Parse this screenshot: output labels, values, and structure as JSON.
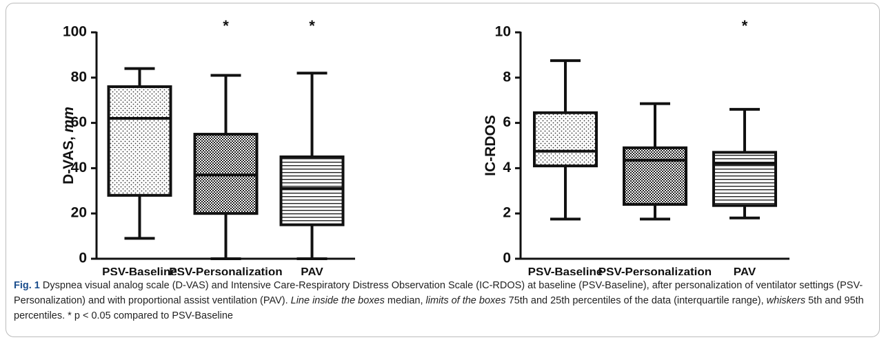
{
  "chart_data": [
    {
      "type": "box",
      "ylabel": "D-VAS,",
      "ylabel_unit": "mm",
      "categories": [
        "PSV-Baseline",
        "PSV-Personalization",
        "PAV"
      ],
      "whisker_low": [
        9,
        0,
        0
      ],
      "q1": [
        28,
        20,
        15
      ],
      "median": [
        62,
        37,
        31
      ],
      "q3": [
        76,
        55,
        45
      ],
      "whisker_high": [
        84,
        81,
        82
      ],
      "fill_patterns": [
        "dots",
        "checker",
        "hlines"
      ],
      "color": "#111111",
      "ylim": [
        0,
        100
      ],
      "yticks": [
        0,
        20,
        40,
        60,
        80,
        100
      ],
      "annotations": [
        {
          "category": "PSV-Personalization",
          "text": "*"
        },
        {
          "category": "PAV",
          "text": "*"
        }
      ]
    },
    {
      "type": "box",
      "ylabel": "IC-RDOS",
      "categories": [
        "PSV-Baseline",
        "PSV-Personalization",
        "PAV"
      ],
      "whisker_low": [
        1.75,
        1.75,
        1.8
      ],
      "q1": [
        4.1,
        2.4,
        2.35
      ],
      "median": [
        4.75,
        4.35,
        4.2
      ],
      "q3": [
        6.45,
        4.9,
        4.7
      ],
      "whisker_high": [
        8.75,
        6.85,
        6.6
      ],
      "fill_patterns": [
        "dots",
        "checker",
        "hlines"
      ],
      "color": "#111111",
      "ylim": [
        0,
        10
      ],
      "yticks": [
        0,
        2,
        4,
        6,
        8,
        10
      ],
      "annotations": [
        {
          "category": "PAV",
          "text": "*"
        }
      ]
    }
  ],
  "figure": {
    "label": "Fig. 1",
    "caption": [
      {
        "text": " Dyspnea visual analog scale (D-VAS) and Intensive Care-Respiratory Distress Observation Scale (IC-RDOS) at baseline (PSV-Baseline), after personalization of ventilator settings (PSV-Personalization) and with proportional assist ventilation (PAV). "
      },
      {
        "text": "Line inside the boxes",
        "italic": true
      },
      {
        "text": " median, "
      },
      {
        "text": "limits of the boxes",
        "italic": true
      },
      {
        "text": " 75th and 25th percentiles of the data (interquartile range), "
      },
      {
        "text": "whiskers",
        "italic": true
      },
      {
        "text": " 5th and 95th percentiles. * p < 0.05 compared to PSV-Baseline"
      }
    ]
  }
}
